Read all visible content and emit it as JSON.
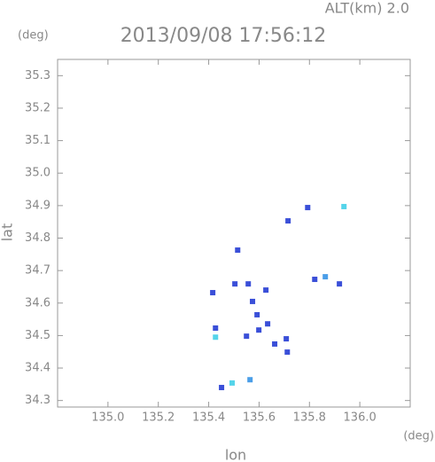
{
  "chart_data": {
    "type": "scatter",
    "title": "2013/09/08 17:56:12",
    "altitude_label": "ALT(km) 2.0",
    "y_unit": "(deg)",
    "x_unit": "(deg)",
    "xlabel": "lon",
    "ylabel": "lat",
    "xlim": [
      134.8,
      136.2
    ],
    "ylim": [
      34.28,
      35.35
    ],
    "xticks": [
      {
        "value": 135.0,
        "label": "135.0"
      },
      135.2,
      135.4,
      135.6,
      135.8,
      {
        "value": 136.0,
        "label": "136.0"
      }
    ],
    "yticks": [
      34.3,
      34.4,
      34.5,
      34.6,
      34.7,
      34.8,
      34.9,
      {
        "value": 35.0,
        "label": "35.0"
      },
      35.1,
      35.2,
      35.3
    ],
    "series": [
      {
        "color": "#3a4fd8",
        "x": [
          135.793,
          135.715,
          135.515,
          135.821,
          135.919,
          135.416,
          135.574,
          135.592,
          135.427,
          135.55,
          135.599,
          135.634,
          135.662,
          135.712,
          135.708,
          135.451,
          135.557,
          135.627,
          135.504
        ],
        "y": [
          34.894,
          34.853,
          34.763,
          34.673,
          34.659,
          34.632,
          34.605,
          34.564,
          34.523,
          34.498,
          34.517,
          34.536,
          34.474,
          34.449,
          34.49,
          34.34,
          34.659,
          34.64,
          34.659
        ]
      },
      {
        "color": "#4a9ee8",
        "x": [
          135.863,
          135.564
        ],
        "y": [
          34.681,
          34.364
        ]
      },
      {
        "color": "#55d4ea",
        "x": [
          135.937,
          135.427,
          135.493
        ],
        "y": [
          34.897,
          34.495,
          34.354
        ]
      }
    ]
  }
}
